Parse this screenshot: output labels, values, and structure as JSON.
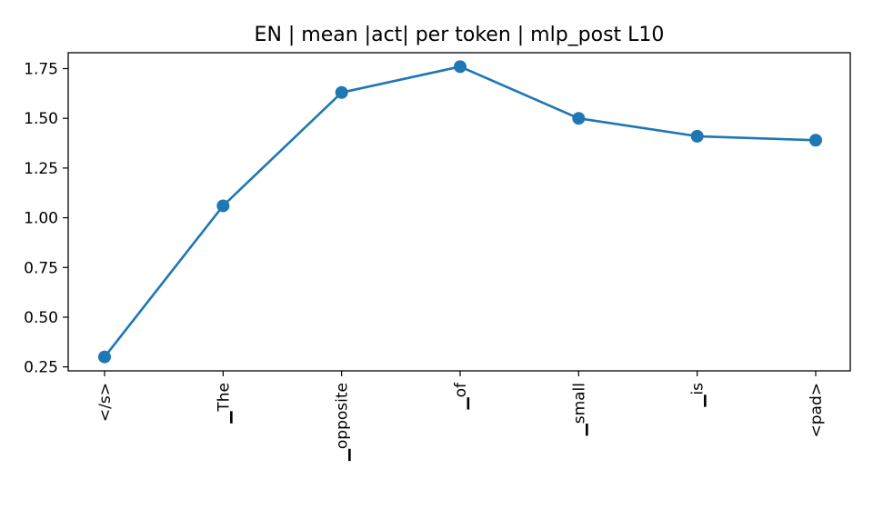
{
  "chart_data": {
    "type": "line",
    "title": "EN | mean |act| per token | mlp_post L10",
    "xlabel": "",
    "ylabel": "",
    "categories": [
      "</s>",
      "▁The",
      "▁opposite",
      "▁of",
      "▁small",
      "▁is",
      "<pad>"
    ],
    "series": [
      {
        "values": [
          0.3,
          1.06,
          1.63,
          1.76,
          1.5,
          1.41,
          1.39
        ]
      }
    ],
    "ylim": [
      0.23,
      1.83
    ],
    "yticks": [
      "0.25",
      "0.50",
      "0.75",
      "1.00",
      "1.25",
      "1.50",
      "1.75"
    ],
    "grid": false,
    "color": "#1f77b4"
  }
}
